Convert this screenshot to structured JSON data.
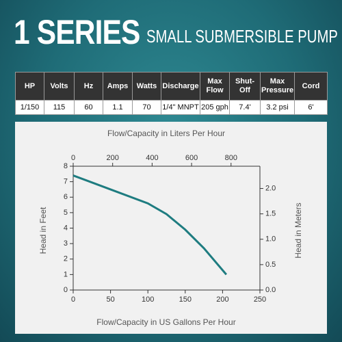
{
  "header": {
    "title": "1 SERIES",
    "subtitle": "SMALL SUBMERSIBLE PUMP"
  },
  "table": {
    "columns": [
      "HP",
      "Volts",
      "Hz",
      "Amps",
      "Watts",
      "Discharge",
      "Max Flow",
      "Shut-Off",
      "Max Pressure",
      "Cord"
    ],
    "rows": [
      [
        "1/150",
        "115",
        "60",
        "1.1",
        "70",
        "1/4\" MNPT",
        "205 gph",
        "7.4'",
        "3.2 psi",
        "6'"
      ]
    ]
  },
  "chart_data": {
    "type": "line",
    "xlabel": "Flow/Capacity in US Gallons Per Hour",
    "x2label": "Flow/Capacity in Liters Per Hour",
    "ylabel": "Head in Feet",
    "y2label": "Head in Meters",
    "x": [
      0,
      50,
      100,
      125,
      150,
      175,
      205
    ],
    "series": [
      {
        "color": "#1e7c80",
        "values": [
          7.4,
          6.5,
          5.6,
          4.9,
          3.9,
          2.7,
          1.0
        ]
      }
    ],
    "xlim": [
      0,
      250
    ],
    "xticks": [
      0,
      50,
      100,
      150,
      200,
      250
    ],
    "x2lim": [
      0,
      946.35
    ],
    "x2ticks": [
      0,
      200,
      400,
      600,
      800
    ],
    "ylim": [
      0,
      8
    ],
    "yticks": [
      0,
      1,
      2,
      3,
      4,
      5,
      6,
      7,
      8
    ],
    "y2lim": [
      0,
      2.4384
    ],
    "y2ticks": [
      {
        "value": 0,
        "label": "0.0"
      },
      0.5,
      {
        "value": 1,
        "label": "1.0"
      },
      1.5,
      {
        "value": 2,
        "label": "2.0"
      }
    ],
    "grid": false
  }
}
